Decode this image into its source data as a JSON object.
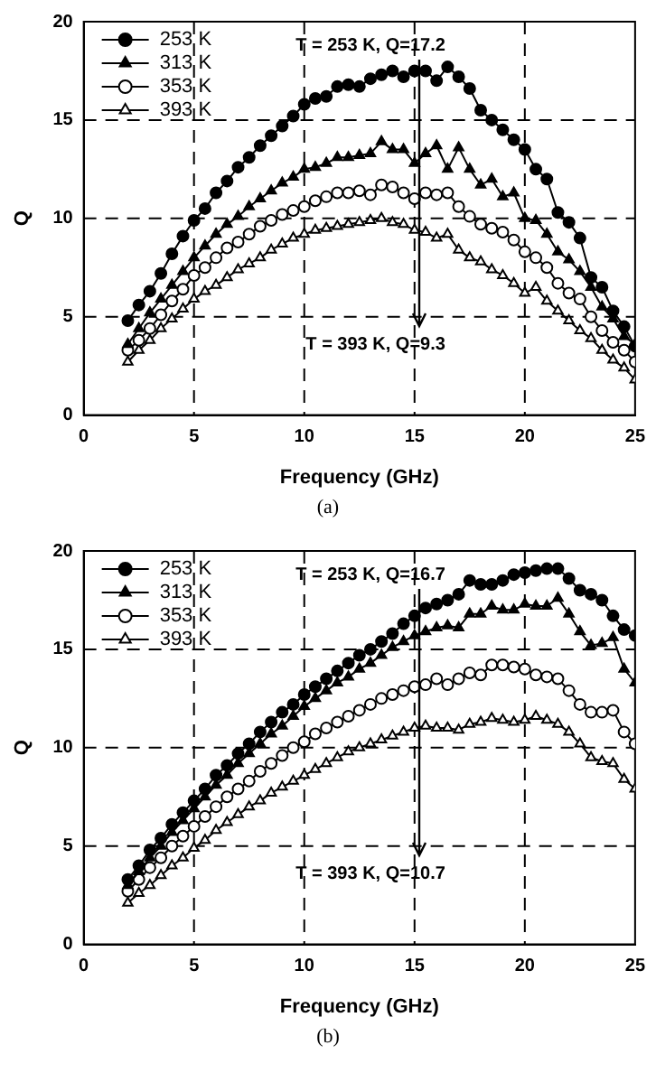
{
  "chart_data": [
    {
      "type": "line",
      "xlabel": "Frequency (GHz)",
      "ylabel": "Q",
      "xlim": [
        0,
        25
      ],
      "ylim": [
        0,
        20
      ],
      "xticks": [
        0,
        5,
        10,
        15,
        20,
        25
      ],
      "yticks": [
        0,
        5,
        10,
        15,
        20
      ],
      "grid": true,
      "legend": "top left",
      "line_style": "solid",
      "annotations": [
        "T = 253 K, Q=17.2",
        "T = 393 K, Q=9.3",
        "(a)"
      ],
      "x": [
        2,
        2.5,
        3,
        3.5,
        4,
        4.5,
        5,
        5.5,
        6,
        6.5,
        7,
        7.5,
        8,
        8.5,
        9,
        9.5,
        10,
        10.5,
        11,
        11.5,
        12,
        12.5,
        13,
        13.5,
        14,
        14.5,
        15,
        15.5,
        16,
        16.5,
        17,
        17.5,
        18,
        18.5,
        19,
        19.5,
        20,
        20.5,
        21,
        21.5,
        22,
        22.5,
        23,
        23.5,
        24,
        24.5,
        25
      ],
      "series": [
        {
          "name": "253 K",
          "color": "#000000",
          "marker": "circle",
          "values": [
            4.8,
            5.6,
            6.3,
            7.2,
            8.2,
            9.1,
            9.9,
            10.5,
            11.3,
            11.9,
            12.6,
            13.1,
            13.7,
            14.2,
            14.7,
            15.2,
            15.8,
            16.1,
            16.2,
            16.7,
            16.8,
            16.7,
            17.1,
            17.3,
            17.5,
            17.2,
            17.5,
            17.5,
            17.0,
            17.7,
            17.2,
            16.6,
            15.5,
            15.0,
            14.5,
            14.0,
            13.5,
            12.5,
            12.0,
            10.3,
            9.8,
            9.0,
            7.0,
            6.5,
            5.3,
            4.5,
            3.5
          ]
        },
        {
          "name": "313 K",
          "color": "#000000",
          "marker": "triangle",
          "values": [
            3.6,
            4.4,
            5.2,
            5.9,
            6.6,
            7.3,
            8.0,
            8.6,
            9.2,
            9.7,
            10.1,
            10.6,
            11.0,
            11.4,
            11.8,
            12.1,
            12.5,
            12.6,
            12.8,
            13.1,
            13.1,
            13.2,
            13.3,
            13.9,
            13.5,
            13.5,
            12.8,
            13.3,
            13.7,
            12.5,
            13.6,
            12.5,
            11.7,
            12.0,
            11.1,
            11.3,
            10.0,
            9.9,
            9.2,
            8.3,
            7.9,
            7.3,
            6.5,
            5.5,
            4.9,
            4.0,
            3.6
          ]
        },
        {
          "name": "353 K",
          "color": "#000000",
          "marker": "circle",
          "values": [
            3.3,
            3.8,
            4.4,
            5.1,
            5.8,
            6.4,
            7.1,
            7.5,
            8.0,
            8.5,
            8.8,
            9.2,
            9.6,
            9.9,
            10.2,
            10.4,
            10.6,
            10.9,
            11.1,
            11.3,
            11.3,
            11.4,
            11.2,
            11.7,
            11.6,
            11.3,
            11.0,
            11.3,
            11.2,
            11.3,
            10.6,
            10.1,
            9.7,
            9.5,
            9.3,
            8.9,
            8.3,
            8.0,
            7.5,
            6.7,
            6.2,
            5.9,
            5.0,
            4.3,
            3.7,
            3.3,
            2.7
          ]
        },
        {
          "name": "393 K",
          "color": "#000000",
          "marker": "triangle",
          "values": [
            2.7,
            3.3,
            3.8,
            4.4,
            4.9,
            5.4,
            5.9,
            6.3,
            6.6,
            7.0,
            7.4,
            7.7,
            8.0,
            8.4,
            8.7,
            9.0,
            9.2,
            9.4,
            9.5,
            9.6,
            9.7,
            9.8,
            9.9,
            10.0,
            9.8,
            9.7,
            9.4,
            9.3,
            9.0,
            9.2,
            8.4,
            8.0,
            7.8,
            7.4,
            7.1,
            6.7,
            6.2,
            6.5,
            5.8,
            5.3,
            4.8,
            4.3,
            3.9,
            3.3,
            2.8,
            2.4,
            1.8
          ]
        }
      ]
    },
    {
      "type": "line",
      "xlabel": "Frequency (GHz)",
      "ylabel": "Q",
      "xlim": [
        0,
        25
      ],
      "ylim": [
        0,
        20
      ],
      "xticks": [
        0,
        5,
        10,
        15,
        20,
        25
      ],
      "yticks": [
        0,
        5,
        10,
        15,
        20
      ],
      "grid": true,
      "legend": "top left",
      "line_style": "solid",
      "annotations": [
        "T = 253 K, Q=16.7",
        "T = 393 K, Q=10.7",
        "(b)"
      ],
      "x": [
        2,
        2.5,
        3,
        3.5,
        4,
        4.5,
        5,
        5.5,
        6,
        6.5,
        7,
        7.5,
        8,
        8.5,
        9,
        9.5,
        10,
        10.5,
        11,
        11.5,
        12,
        12.5,
        13,
        13.5,
        14,
        14.5,
        15,
        15.5,
        16,
        16.5,
        17,
        17.5,
        18,
        18.5,
        19,
        19.5,
        20,
        20.5,
        21,
        21.5,
        22,
        22.5,
        23,
        23.5,
        24,
        24.5,
        25
      ],
      "series": [
        {
          "name": "253 K",
          "color": "#000000",
          "marker": "circle",
          "values": [
            3.3,
            4.0,
            4.8,
            5.4,
            6.1,
            6.7,
            7.3,
            7.9,
            8.6,
            9.1,
            9.7,
            10.2,
            10.8,
            11.3,
            11.8,
            12.2,
            12.7,
            13.1,
            13.5,
            13.9,
            14.3,
            14.7,
            15.0,
            15.4,
            15.8,
            16.3,
            16.7,
            17.1,
            17.3,
            17.5,
            17.8,
            18.5,
            18.3,
            18.3,
            18.5,
            18.8,
            18.9,
            19.0,
            19.1,
            19.1,
            18.6,
            18.0,
            17.8,
            17.5,
            16.7,
            16.0,
            15.7
          ]
        },
        {
          "name": "313 K",
          "color": "#000000",
          "marker": "triangle",
          "values": [
            3.0,
            3.7,
            4.4,
            5.0,
            5.7,
            6.3,
            6.9,
            7.5,
            8.1,
            8.6,
            9.2,
            9.7,
            10.2,
            10.7,
            11.1,
            11.6,
            12.1,
            12.5,
            12.9,
            13.3,
            13.6,
            14.0,
            14.3,
            14.7,
            15.1,
            15.4,
            15.7,
            15.9,
            16.1,
            16.2,
            16.1,
            16.8,
            16.8,
            17.2,
            17.0,
            17.0,
            17.3,
            17.2,
            17.2,
            17.6,
            16.8,
            15.9,
            15.2,
            15.3,
            15.6,
            14.0,
            13.3
          ]
        },
        {
          "name": "353 K",
          "color": "#000000",
          "marker": "circle",
          "values": [
            2.7,
            3.3,
            3.9,
            4.4,
            5.0,
            5.5,
            6.0,
            6.5,
            7.0,
            7.5,
            7.9,
            8.3,
            8.8,
            9.2,
            9.6,
            10.0,
            10.3,
            10.7,
            11.0,
            11.3,
            11.6,
            11.9,
            12.2,
            12.5,
            12.7,
            12.9,
            13.1,
            13.2,
            13.5,
            13.2,
            13.5,
            13.8,
            13.7,
            14.2,
            14.2,
            14.1,
            14.0,
            13.7,
            13.6,
            13.5,
            12.9,
            12.2,
            11.8,
            11.8,
            11.9,
            10.8,
            10.2
          ]
        },
        {
          "name": "393 K",
          "color": "#000000",
          "marker": "triangle",
          "values": [
            2.1,
            2.6,
            3.0,
            3.5,
            4.0,
            4.4,
            4.9,
            5.3,
            5.8,
            6.2,
            6.6,
            7.0,
            7.3,
            7.7,
            8.0,
            8.3,
            8.6,
            8.9,
            9.2,
            9.5,
            9.8,
            10.0,
            10.2,
            10.4,
            10.6,
            10.8,
            11.0,
            11.1,
            11.0,
            11.0,
            10.9,
            11.2,
            11.3,
            11.5,
            11.4,
            11.3,
            11.4,
            11.6,
            11.4,
            11.2,
            10.8,
            10.2,
            9.5,
            9.3,
            9.2,
            8.4,
            7.9
          ]
        }
      ]
    }
  ]
}
